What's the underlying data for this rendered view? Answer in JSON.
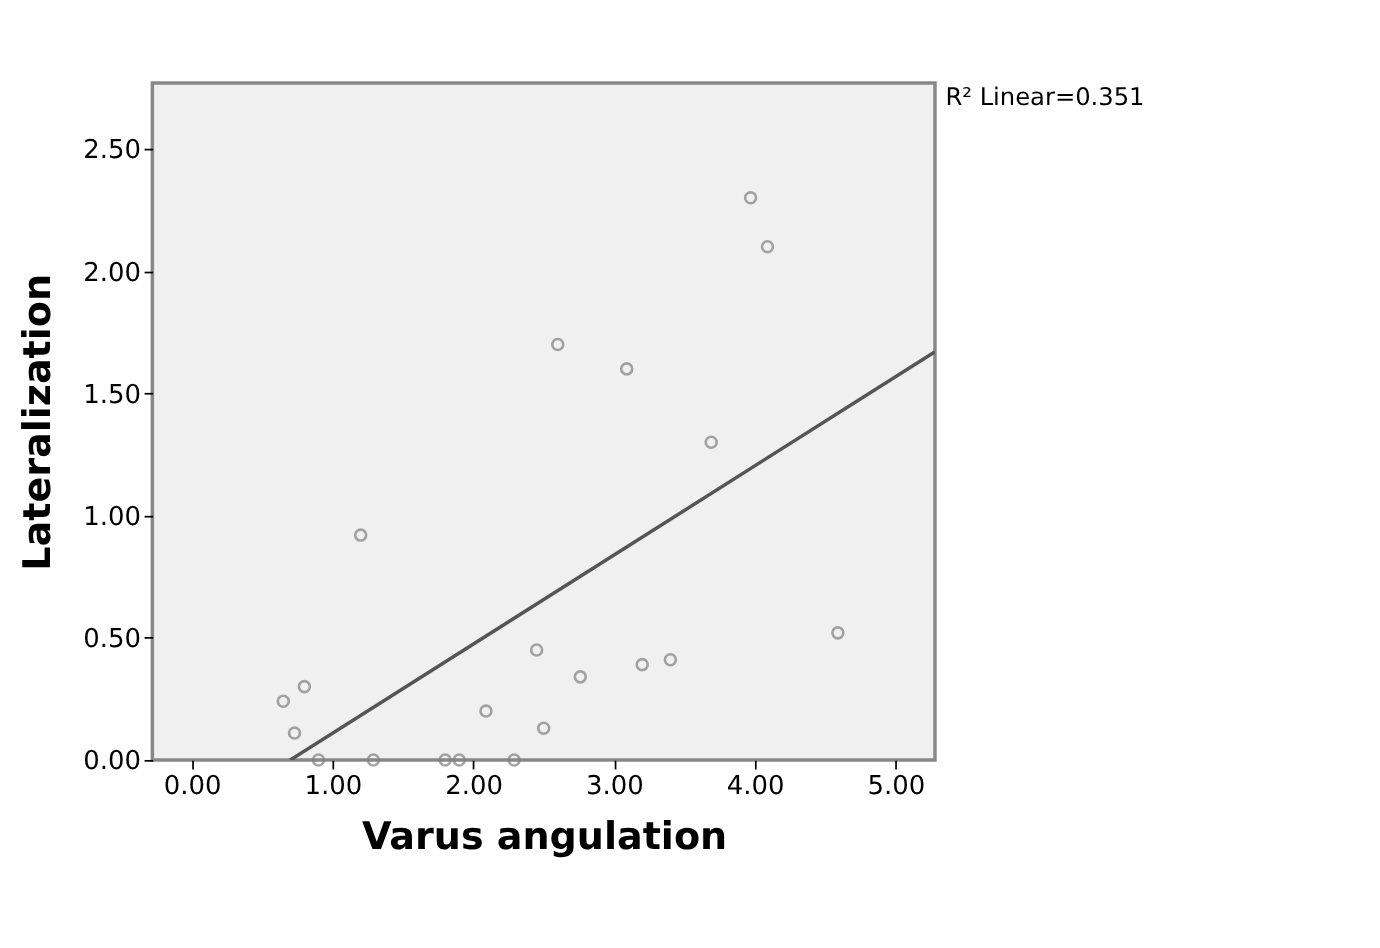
{
  "chart_data": {
    "type": "scatter",
    "xlabel": "Varus angulation",
    "ylabel": "Lateralization",
    "annotations": [
      "R² Linear=0.351"
    ],
    "xlim": [
      -0.28,
      5.28
    ],
    "ylim": [
      0,
      2.77
    ],
    "xticks": [
      {
        "value": 0,
        "label": "0.00"
      },
      {
        "value": 1,
        "label": "1.00"
      },
      {
        "value": 2,
        "label": "2.00"
      },
      {
        "value": 3,
        "label": "3.00"
      },
      {
        "value": 4,
        "label": "4.00"
      },
      {
        "value": 5,
        "label": "5.00"
      }
    ],
    "yticks": [
      {
        "value": 0,
        "label": "0.00"
      },
      {
        "value": 0.5,
        "label": "0.50"
      },
      {
        "value": 1,
        "label": "1.00"
      },
      {
        "value": 1.5,
        "label": "1.50"
      },
      {
        "value": 2,
        "label": "2.00"
      },
      {
        "value": 2.5,
        "label": "2.50"
      }
    ],
    "grid": false,
    "series": [
      {
        "color": "#808080",
        "marker": "circle",
        "x": [
          0.65,
          0.73,
          0.8,
          1.2,
          0.9,
          1.29,
          1.8,
          1.9,
          2.09,
          2.29,
          2.45,
          2.5,
          2.76,
          3.2,
          3.4,
          3.69,
          4.59,
          3.97,
          4.09,
          2.6,
          3.09
        ],
        "values": [
          0.24,
          0.11,
          0.3,
          0.92,
          0,
          0,
          0,
          0,
          0.2,
          0,
          0.45,
          0.13,
          0.34,
          0.39,
          0.41,
          1.3,
          0.52,
          2.3,
          2.1,
          1.7,
          1.6
        ]
      },
      {
        "type": "line",
        "color": "#555555",
        "x": [
          0.7,
          5.28
        ],
        "values": [
          0,
          1.67
        ],
        "line_style": "solid"
      }
    ]
  }
}
